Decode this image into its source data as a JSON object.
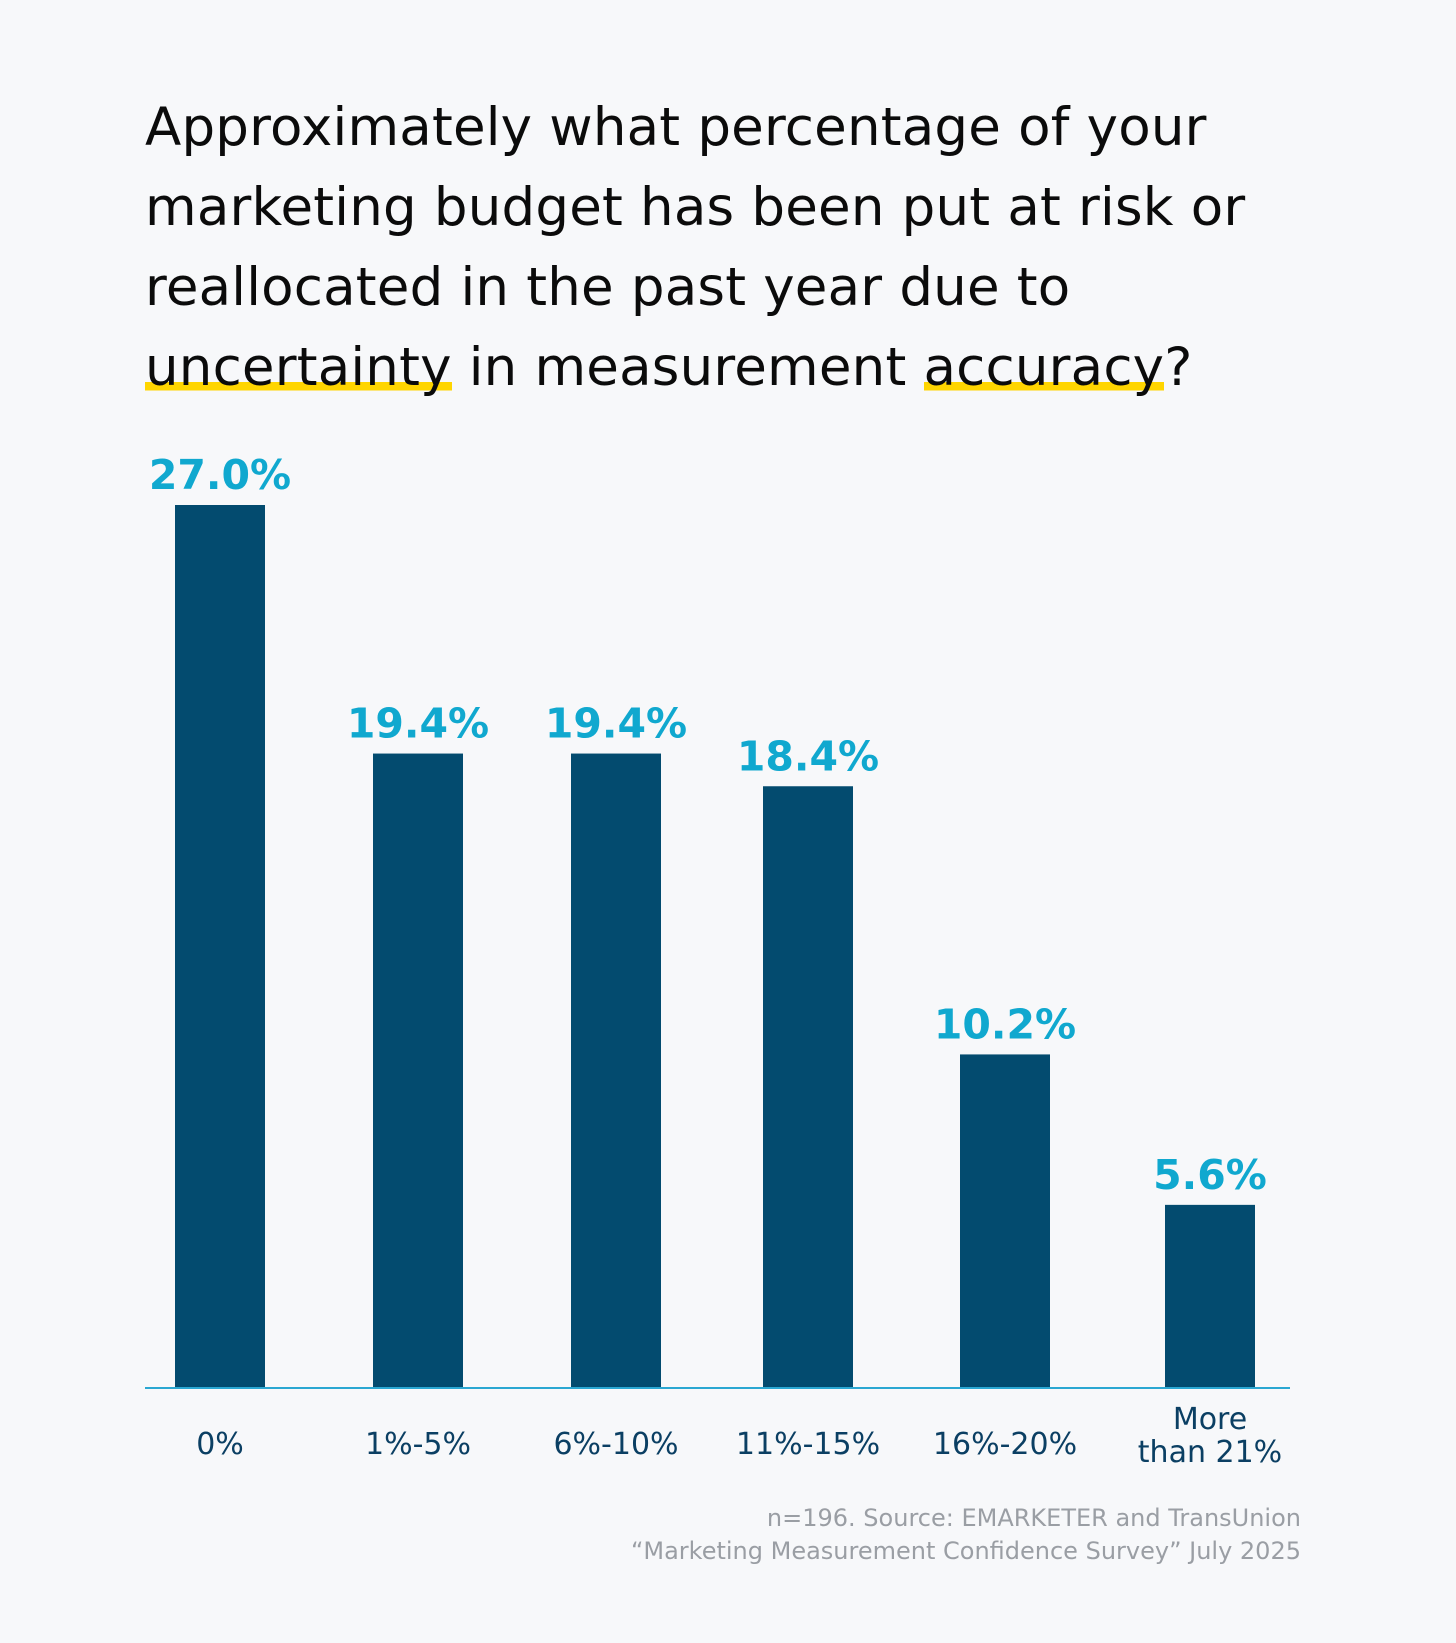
{
  "title": {
    "part1": "Approximately what percentage of your marketing budget has been put at risk or reallocated in the past year due to",
    "highlight1": "uncertainty",
    "part2": "in measurement",
    "highlight2": "accuracy",
    "part3": "?"
  },
  "colors": {
    "bar": "#034b6f",
    "value_label": "#10a8cf",
    "axis_line": "#2aa7d2",
    "category_label": "#0b3f63",
    "highlight": "#ffd500"
  },
  "chart_data": {
    "type": "bar",
    "categories": [
      [
        "0%"
      ],
      [
        "1%-5%"
      ],
      [
        "6%-10%"
      ],
      [
        "11%-15%"
      ],
      [
        "16%-20%"
      ],
      [
        "More",
        "than 21%"
      ]
    ],
    "values": [
      27.0,
      19.4,
      19.4,
      18.4,
      10.2,
      5.6
    ],
    "value_labels": [
      "27.0%",
      "19.4%",
      "19.4%",
      "18.4%",
      "10.2%",
      "5.6%"
    ],
    "ylim": [
      0,
      27.0
    ],
    "grid": false,
    "legend": "none"
  },
  "footnote": {
    "line1": "n=196. Source: EMARKETER and TransUnion",
    "line2": "“Marketing Measurement Confidence Survey” July 2025"
  }
}
